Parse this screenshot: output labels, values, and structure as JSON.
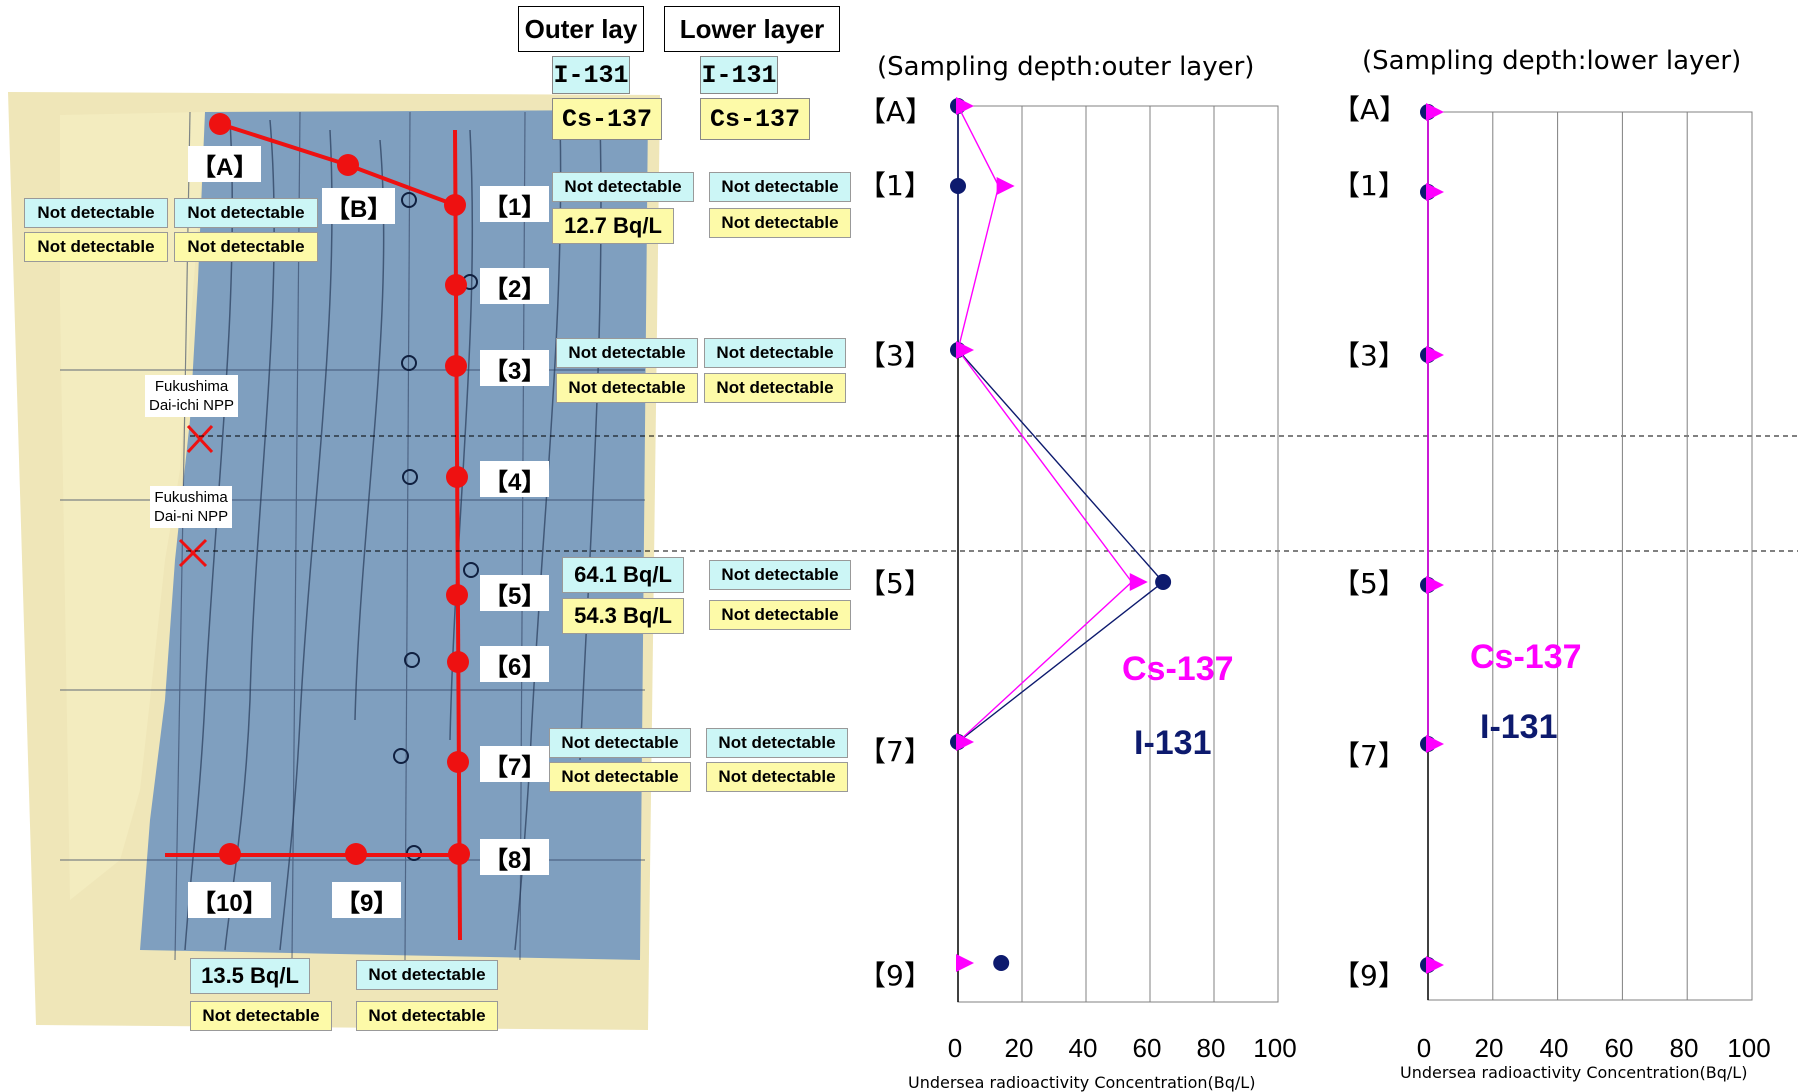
{
  "header": {
    "outer_lay": "Outer lay",
    "lower_layer": "Lower layer",
    "i131": "I-131",
    "cs137": "Cs-137"
  },
  "map": {
    "npp1": [
      "Fukushima",
      "Dai-ichi NPP"
    ],
    "npp2": [
      "Fukushima",
      "Dai-ni NPP"
    ],
    "stations": {
      "A": "【A】",
      "B": "【B】",
      "s1": "【1】",
      "s2": "【2】",
      "s3": "【3】",
      "s4": "【4】",
      "s5": "【5】",
      "s6": "【6】",
      "s7": "【7】",
      "s8": "【8】",
      "s9": "【9】",
      "s10": "【10】"
    },
    "readings": {
      "ab_i131_outer": "Not detectable",
      "ab_i131_lower": "Not detectable",
      "ab_cs_outer": "Not detectable",
      "ab_cs_lower": "Not detectable",
      "s1_i131_outer": "Not detectable",
      "s1_i131_lower": "Not detectable",
      "s1_cs_outer": "12.7 Bq/L",
      "s1_cs_lower": "Not detectable",
      "s3_i131_outer": "Not detectable",
      "s3_i131_lower": "Not detectable",
      "s3_cs_outer": "Not detectable",
      "s3_cs_lower": "Not detectable",
      "s5_i131_outer": "64.1 Bq/L",
      "s5_i131_lower": "Not detectable",
      "s5_cs_outer": "54.3 Bq/L",
      "s5_cs_lower": "Not detectable",
      "s7_i131_outer": "Not detectable",
      "s7_i131_lower": "Not detectable",
      "s7_cs_outer": "Not detectable",
      "s7_cs_lower": "Not detectable",
      "s9_i131_outer": "13.5 Bq/L",
      "s9_i131_lower": "Not detectable",
      "s9_cs_outer": "Not detectable",
      "s9_cs_lower": "Not detectable"
    }
  },
  "colors": {
    "i131": "#0d1a6e",
    "cs137": "#ff00ff",
    "route": "#ee1111",
    "sea": "#7f9fbf",
    "land": "#f1e9b4"
  },
  "chart_data": [
    {
      "type": "line",
      "title": "(Sampling depth:outer layer)",
      "xlabel": "Undersea radioactivity Concentration(Bq/L)",
      "xlim": [
        0,
        100
      ],
      "xticks": [
        "0",
        "20",
        "40",
        "60",
        "80",
        "100"
      ],
      "categories": [
        "【A】",
        "【1】",
        "【3】",
        "【5】",
        "【7】",
        "【9】"
      ],
      "series": [
        {
          "name": "I-131",
          "values": [
            0,
            0,
            0,
            64.1,
            0,
            13.5
          ]
        },
        {
          "name": "Cs-137",
          "values": [
            0,
            12.7,
            0,
            54.3,
            0,
            0
          ]
        }
      ]
    },
    {
      "type": "line",
      "title": "(Sampling depth:lower layer)",
      "xlabel": "Undersea radioactivity Concentration(Bq/L)",
      "xlim": [
        0,
        100
      ],
      "xticks": [
        "0",
        "20",
        "40",
        "60",
        "80",
        "100"
      ],
      "categories": [
        "【A】",
        "【1】",
        "【3】",
        "【5】",
        "【7】",
        "【9】"
      ],
      "series": [
        {
          "name": "I-131",
          "values": [
            0,
            0,
            0,
            0,
            0,
            0
          ]
        },
        {
          "name": "Cs-137",
          "values": [
            0,
            0,
            0,
            0,
            0,
            0
          ]
        }
      ]
    }
  ]
}
